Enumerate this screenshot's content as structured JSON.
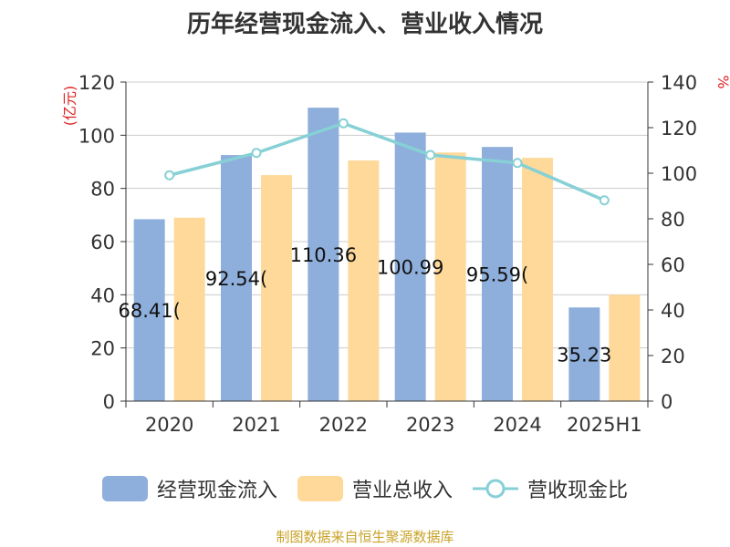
{
  "chart_data": {
    "type": "bar",
    "title": "历年经营现金流入、营业收入情况",
    "categories": [
      "2020",
      "2021",
      "2022",
      "2023",
      "2024",
      "2025H1"
    ],
    "y_left_label": "(亿元)",
    "y_right_label": "%",
    "y_left_lim": [
      0,
      120
    ],
    "y_left_ticks": [
      "0",
      "20",
      "40",
      "60",
      "80",
      "100",
      "120"
    ],
    "y_right_lim": [
      0,
      140
    ],
    "y_right_ticks": [
      "0",
      "20",
      "40",
      "60",
      "80",
      "100",
      "120",
      "140"
    ],
    "grid": true,
    "legend_position": "bottom",
    "series": [
      {
        "name": "经营现金流入",
        "kind": "bar",
        "axis": "left",
        "color": "#8eaedb",
        "values": [
          68.41,
          92.54,
          110.36,
          100.99,
          95.59,
          35.23
        ],
        "labels": [
          "68.41(",
          "92.54(",
          "110.36",
          "100.99",
          "95.59(",
          "35.23"
        ]
      },
      {
        "name": "营业总收入",
        "kind": "bar",
        "axis": "left",
        "color": "#ffd999",
        "values": [
          69.0,
          85.0,
          90.5,
          93.5,
          91.5,
          40.0
        ]
      },
      {
        "name": "营收现金比",
        "kind": "line",
        "axis": "right",
        "color": "#86d0d6",
        "values": [
          99.1,
          108.9,
          121.9,
          108.0,
          104.5,
          88.1
        ]
      }
    ]
  },
  "footer": "制图数据来自恒生聚源数据库"
}
